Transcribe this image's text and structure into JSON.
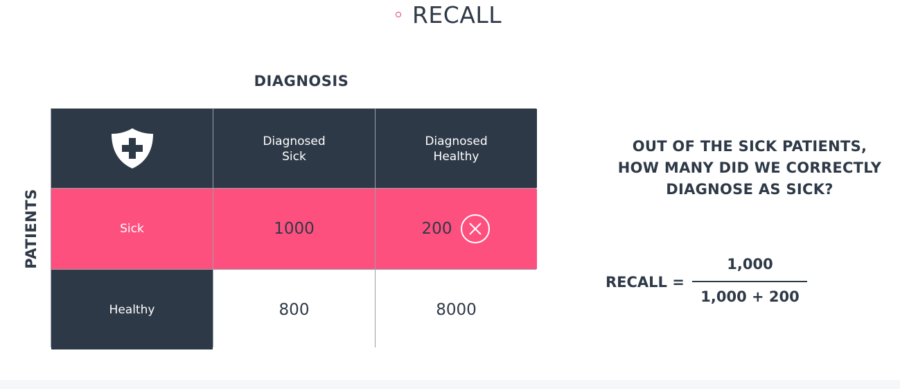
{
  "title": "RECALL",
  "column_axis_label": "DIAGNOSIS",
  "row_axis_label": "PATIENTS",
  "matrix": {
    "corner_icon": "shield-cross-icon",
    "column_headers": [
      "Diagnosed\nSick",
      "Diagnosed\nHealthy"
    ],
    "rows": [
      {
        "label": "Sick",
        "values": [
          "1000",
          "200"
        ]
      },
      {
        "label": "Healthy",
        "values": [
          "800",
          "8000"
        ]
      }
    ],
    "highlight_row_color": "#fe507f",
    "dark_color": "#2e3947",
    "marked_cell_icon": "x-circle-icon"
  },
  "question": "OUT OF THE SICK PATIENTS,\nHOW MANY DID WE CORRECTLY\nDIAGNOSE AS SICK?",
  "formula": {
    "lhs": "RECALL =",
    "numerator": "1,000",
    "denominator": "1,000 + 200"
  }
}
